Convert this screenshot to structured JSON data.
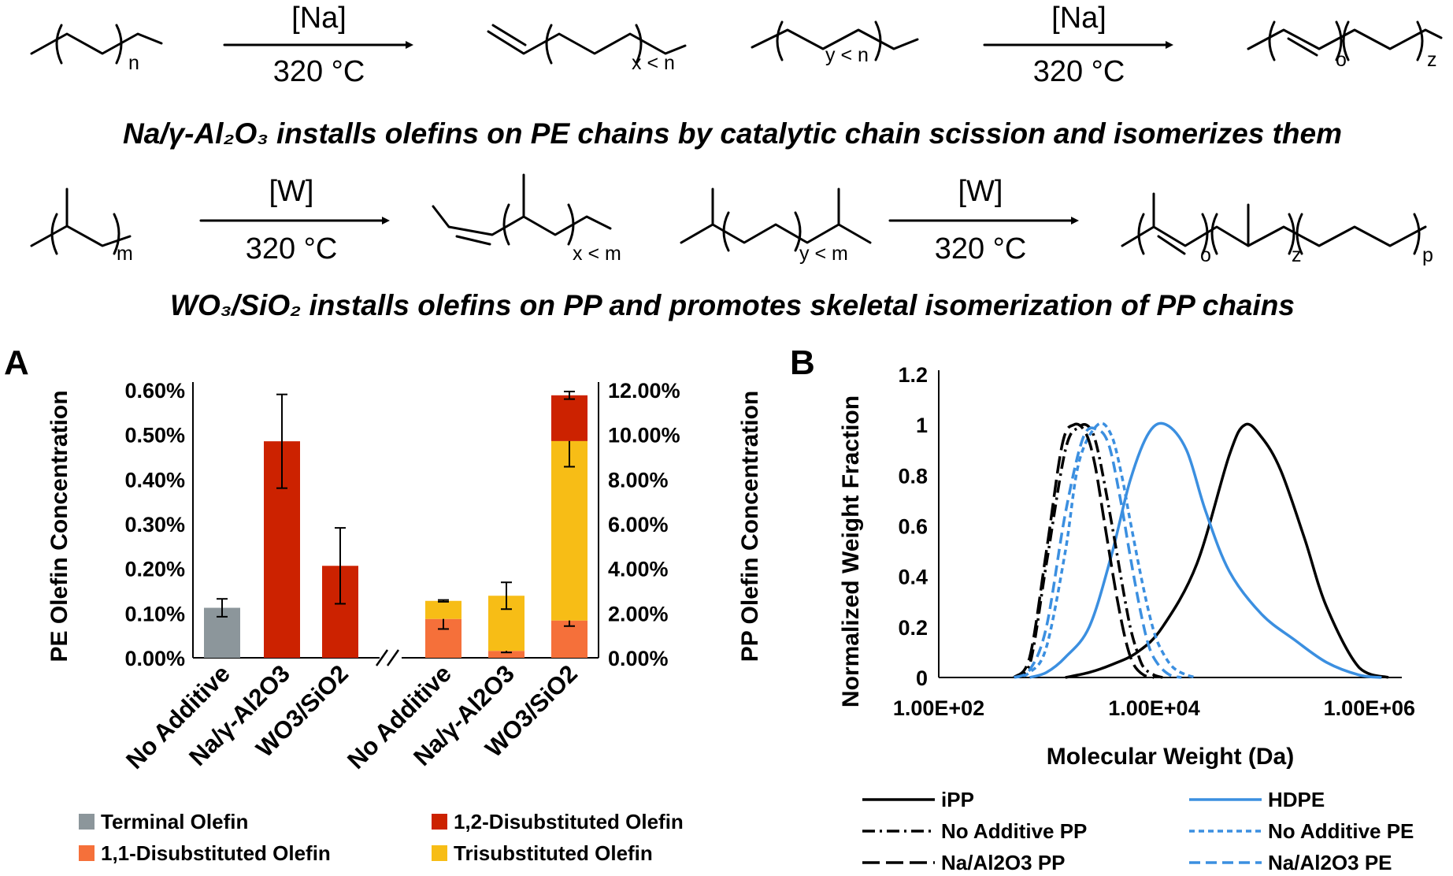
{
  "scheme": {
    "row1": {
      "reaction1": {
        "reagent": "[Na]",
        "condition": "320 °C",
        "reactant_sub": "n",
        "product_sub": "x < n"
      },
      "reaction2": {
        "reagent": "[Na]",
        "condition": "320 °C",
        "reactant_sub": "y < n",
        "product_sub1": "o",
        "product_sub2": "z"
      },
      "caption": "Na/γ-Al₂O₃ installs olefins on PE chains by catalytic chain scission and isomerizes them"
    },
    "row2": {
      "reaction1": {
        "reagent": "[W]",
        "condition": "320 °C",
        "reactant_sub": "m",
        "product_sub": "x < m"
      },
      "reaction2": {
        "reagent": "[W]",
        "condition": "320 °C",
        "reactant_sub": "y < m",
        "product_sub1": "o",
        "product_sub2": "z",
        "product_sub3": "p"
      },
      "caption": "WO₃/SiO₂ installs olefins on PP and promotes skeletal isomerization of PP chains"
    }
  },
  "chart_data": [
    {
      "panel": "A",
      "type": "bar",
      "stacked": true,
      "ylabel": "PE Olefin Concentration",
      "y2label": "PP Olefin Concentration",
      "ylim": [
        0,
        0.006
      ],
      "y2lim": [
        0,
        0.12
      ],
      "yticks": [
        "0.00%",
        "0.10%",
        "0.20%",
        "0.30%",
        "0.40%",
        "0.50%",
        "0.60%"
      ],
      "y2ticks": [
        "0.00%",
        "2.00%",
        "4.00%",
        "6.00%",
        "8.00%",
        "10.00%",
        "12.00%"
      ],
      "series_colors": {
        "Terminal Olefin": "#8c969b",
        "1,2-Disubstituted Olefin": "#cc2200",
        "1,1-Disubstituted Olefin": "#f5703a",
        "Trisubstituted Olefin": "#f7bd16"
      },
      "legend": [
        "Terminal Olefin",
        "1,2-Disubstituted Olefin",
        "1,1-Disubstituted Olefin",
        "Trisubstituted Olefin"
      ],
      "legend_position": "bottom",
      "groups": [
        {
          "name": "PE",
          "axis": "left",
          "categories": [
            "No Additive",
            "Na/γ-Al2O3",
            "WO3/SiO2"
          ],
          "bars": [
            {
              "segments": [
                {
                  "series": "Terminal Olefin",
                  "value": 0.00112,
                  "err": 0.0002
                }
              ]
            },
            {
              "segments": [
                {
                  "series": "1,2-Disubstituted Olefin",
                  "value": 0.00485,
                  "err": 0.00105
                }
              ]
            },
            {
              "segments": [
                {
                  "series": "1,2-Disubstituted Olefin",
                  "value": 0.00206,
                  "err": 0.00085
                }
              ]
            }
          ]
        },
        {
          "name": "PP",
          "axis": "right",
          "categories": [
            "No Additive",
            "Na/γ-Al2O3",
            "WO3/SiO2"
          ],
          "bars": [
            {
              "segments": [
                {
                  "series": "1,1-Disubstituted Olefin",
                  "value": 0.0174,
                  "err": 0.0045
                },
                {
                  "series": "Trisubstituted Olefin",
                  "value": 0.0081,
                  "err": 0.0004
                }
              ]
            },
            {
              "segments": [
                {
                  "series": "1,1-Disubstituted Olefin",
                  "value": 0.0031,
                  "err": 0.0007
                },
                {
                  "series": "Trisubstituted Olefin",
                  "value": 0.0247,
                  "err": 0.006
                }
              ]
            },
            {
              "segments": [
                {
                  "series": "1,1-Disubstituted Olefin",
                  "value": 0.0167,
                  "err": 0.0025
                },
                {
                  "series": "Trisubstituted Olefin",
                  "value": 0.0804,
                  "err": 0.0115
                },
                {
                  "series": "1,2-Disubstituted Olefin",
                  "value": 0.0205,
                  "err": 0.0017
                }
              ]
            }
          ]
        }
      ]
    },
    {
      "panel": "B",
      "type": "line",
      "xscale": "log",
      "xlabel": "Molecular Weight (Da)",
      "ylabel": "Normalized Weight Fraction",
      "xlim": [
        100,
        2000000
      ],
      "ylim": [
        0,
        1.2
      ],
      "xticks": [
        "1.00E+02",
        "1.00E+04",
        "1.00E+06"
      ],
      "yticks": [
        "0",
        "0.2",
        "0.4",
        "0.6",
        "0.8",
        "1",
        "1.2"
      ],
      "legend_position": "bottom",
      "series": [
        {
          "name": "iPP",
          "color": "#000000",
          "dash": "solid",
          "x": [
            1500,
            2500,
            4000,
            7000,
            12000,
            25000,
            50000,
            70000,
            100000,
            150000,
            250000,
            400000,
            800000,
            1500000
          ],
          "y": [
            0,
            0.02,
            0.05,
            0.1,
            0.2,
            0.45,
            0.88,
            1.0,
            0.95,
            0.82,
            0.55,
            0.28,
            0.04,
            0
          ]
        },
        {
          "name": "HDPE",
          "color": "#3b8fe0",
          "dash": "solid",
          "x": [
            700,
            1000,
            1500,
            2500,
            4000,
            6000,
            9000,
            13000,
            20000,
            30000,
            50000,
            100000,
            200000,
            400000,
            800000,
            1300000
          ],
          "y": [
            0,
            0.02,
            0.08,
            0.2,
            0.48,
            0.78,
            0.97,
            1.0,
            0.9,
            0.66,
            0.42,
            0.25,
            0.15,
            0.06,
            0.01,
            0
          ]
        },
        {
          "name": "No Additive PP",
          "color": "#000000",
          "dash": "dashdot",
          "x": [
            500,
            700,
            1000,
            1500,
            2000,
            2500,
            3000,
            4000,
            5000,
            6000,
            7000,
            8000,
            10000,
            12000
          ],
          "y": [
            0,
            0.05,
            0.45,
            0.9,
            0.99,
            0.99,
            0.9,
            0.62,
            0.38,
            0.2,
            0.1,
            0.04,
            0.01,
            0
          ]
        },
        {
          "name": "No Additive PE",
          "color": "#3b8fe0",
          "dash": "dotted",
          "x": [
            500,
            700,
            1000,
            1500,
            2000,
            3000,
            4000,
            5000,
            6000,
            8000,
            10000,
            12000,
            15000,
            20000,
            25000
          ],
          "y": [
            0,
            0.02,
            0.12,
            0.5,
            0.85,
            1.0,
            0.96,
            0.8,
            0.62,
            0.35,
            0.18,
            0.1,
            0.04,
            0.01,
            0
          ]
        },
        {
          "name": "Na/Al2O3 PP",
          "color": "#000000",
          "dash": "longdash",
          "x": [
            500,
            700,
            1000,
            1400,
            1800,
            2300,
            2800,
            3500,
            4500,
            5500,
            6500,
            8000,
            10000
          ],
          "y": [
            0,
            0.08,
            0.5,
            0.92,
            1.0,
            0.97,
            0.85,
            0.6,
            0.32,
            0.14,
            0.05,
            0.01,
            0
          ]
        },
        {
          "name": "Na/Al2O3 PE",
          "color": "#3b8fe0",
          "dash": "dashed",
          "x": [
            500,
            700,
            1000,
            1500,
            2200,
            3000,
            3800,
            4800,
            6000,
            7500,
            9000,
            11000,
            14000,
            18000
          ],
          "y": [
            0,
            0.03,
            0.2,
            0.65,
            0.95,
            0.98,
            0.92,
            0.72,
            0.48,
            0.26,
            0.12,
            0.05,
            0.01,
            0
          ]
        }
      ]
    }
  ]
}
